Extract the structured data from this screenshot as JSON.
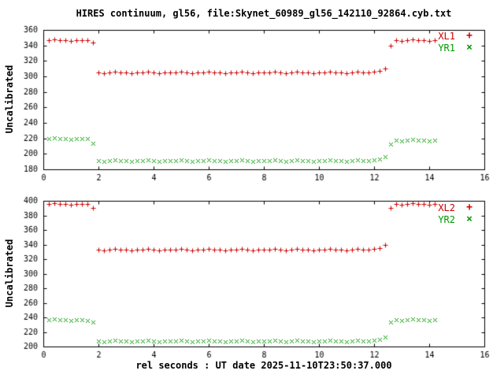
{
  "colors": {
    "background": "#ffffff",
    "axis": "#000000",
    "red": "#cc0000",
    "green": "#009900"
  },
  "chart_data": [
    {
      "type": "scatter",
      "title": "HIRES continuum, gl56, file:Skynet_60989_gl56_142110_92864.cyb.txt",
      "ylabel": "Uncalibrated",
      "xlim": [
        0,
        16
      ],
      "ylim": [
        180,
        360
      ],
      "xticks": [
        0,
        2,
        4,
        6,
        8,
        10,
        12,
        14,
        16
      ],
      "yticks": [
        180,
        200,
        220,
        240,
        260,
        280,
        300,
        320,
        340,
        360
      ],
      "grid": false,
      "legend_position": "top-right",
      "x": [
        0.2,
        0.4,
        0.6,
        0.8,
        1.0,
        1.2,
        1.4,
        1.6,
        1.8,
        2.0,
        2.2,
        2.4,
        2.6,
        2.8,
        3.0,
        3.2,
        3.4,
        3.6,
        3.8,
        4.0,
        4.2,
        4.4,
        4.6,
        4.8,
        5.0,
        5.2,
        5.4,
        5.6,
        5.8,
        6.0,
        6.2,
        6.4,
        6.6,
        6.8,
        7.0,
        7.2,
        7.4,
        7.6,
        7.8,
        8.0,
        8.2,
        8.4,
        8.6,
        8.8,
        9.0,
        9.2,
        9.4,
        9.6,
        9.8,
        10.0,
        10.2,
        10.4,
        10.6,
        10.8,
        11.0,
        11.2,
        11.4,
        11.6,
        11.8,
        12.0,
        12.2,
        12.4,
        12.6,
        12.8,
        13.0,
        13.2,
        13.4,
        13.6,
        13.8,
        14.0,
        14.2
      ],
      "series": [
        {
          "name": "XL1",
          "marker": "plus",
          "color": "#cc0000",
          "values": [
            347,
            348,
            347,
            347,
            346,
            347,
            347,
            347,
            344,
            305,
            304,
            305,
            306,
            305,
            305,
            304,
            305,
            305,
            306,
            305,
            304,
            305,
            305,
            305,
            306,
            305,
            304,
            305,
            305,
            306,
            305,
            305,
            304,
            305,
            305,
            306,
            305,
            304,
            305,
            305,
            305,
            306,
            305,
            304,
            305,
            306,
            305,
            305,
            304,
            305,
            305,
            306,
            305,
            305,
            304,
            305,
            306,
            305,
            305,
            306,
            307,
            310,
            340,
            347,
            346,
            347,
            348,
            347,
            347,
            346,
            347
          ]
        },
        {
          "name": "YR1",
          "marker": "cross",
          "color": "#009900",
          "values": [
            220,
            221,
            220,
            220,
            219,
            220,
            220,
            220,
            214,
            191,
            190,
            191,
            192,
            191,
            191,
            190,
            191,
            191,
            192,
            191,
            190,
            191,
            191,
            191,
            192,
            191,
            190,
            191,
            191,
            192,
            191,
            191,
            190,
            191,
            191,
            192,
            191,
            190,
            191,
            191,
            191,
            192,
            191,
            190,
            191,
            192,
            191,
            191,
            190,
            191,
            191,
            192,
            191,
            191,
            190,
            191,
            192,
            191,
            191,
            192,
            193,
            196,
            213,
            218,
            217,
            218,
            219,
            218,
            218,
            217,
            218
          ]
        }
      ]
    },
    {
      "type": "scatter",
      "xlabel": "rel seconds : UT date 2025-11-10T23:50:37.000",
      "ylabel": "Uncalibrated",
      "xlim": [
        0,
        16
      ],
      "ylim": [
        200,
        400
      ],
      "xticks": [
        0,
        2,
        4,
        6,
        8,
        10,
        12,
        14,
        16
      ],
      "yticks": [
        200,
        220,
        240,
        260,
        280,
        300,
        320,
        340,
        360,
        380,
        400
      ],
      "grid": false,
      "legend_position": "top-right",
      "x": [
        0.2,
        0.4,
        0.6,
        0.8,
        1.0,
        1.2,
        1.4,
        1.6,
        1.8,
        2.0,
        2.2,
        2.4,
        2.6,
        2.8,
        3.0,
        3.2,
        3.4,
        3.6,
        3.8,
        4.0,
        4.2,
        4.4,
        4.6,
        4.8,
        5.0,
        5.2,
        5.4,
        5.6,
        5.8,
        6.0,
        6.2,
        6.4,
        6.6,
        6.8,
        7.0,
        7.2,
        7.4,
        7.6,
        7.8,
        8.0,
        8.2,
        8.4,
        8.6,
        8.8,
        9.0,
        9.2,
        9.4,
        9.6,
        9.8,
        10.0,
        10.2,
        10.4,
        10.6,
        10.8,
        11.0,
        11.2,
        11.4,
        11.6,
        11.8,
        12.0,
        12.2,
        12.4,
        12.6,
        12.8,
        13.0,
        13.2,
        13.4,
        13.6,
        13.8,
        14.0,
        14.2
      ],
      "series": [
        {
          "name": "XL2",
          "marker": "plus",
          "color": "#cc0000",
          "values": [
            396,
            397,
            396,
            396,
            395,
            396,
            396,
            396,
            390,
            333,
            332,
            333,
            334,
            333,
            333,
            332,
            333,
            333,
            334,
            333,
            332,
            333,
            333,
            333,
            334,
            333,
            332,
            333,
            333,
            334,
            333,
            333,
            332,
            333,
            333,
            334,
            333,
            332,
            333,
            333,
            333,
            334,
            333,
            332,
            333,
            334,
            333,
            333,
            332,
            333,
            333,
            334,
            333,
            333,
            332,
            333,
            334,
            333,
            333,
            334,
            335,
            340,
            390,
            396,
            395,
            396,
            397,
            396,
            396,
            395,
            396
          ]
        },
        {
          "name": "YR2",
          "marker": "cross",
          "color": "#009900",
          "values": [
            237,
            238,
            237,
            237,
            236,
            237,
            237,
            236,
            233,
            208,
            207,
            208,
            209,
            208,
            208,
            207,
            208,
            208,
            209,
            208,
            207,
            208,
            208,
            208,
            209,
            208,
            207,
            208,
            208,
            209,
            208,
            208,
            207,
            208,
            208,
            209,
            208,
            207,
            208,
            208,
            208,
            209,
            208,
            207,
            208,
            209,
            208,
            208,
            207,
            208,
            208,
            209,
            208,
            208,
            207,
            208,
            209,
            208,
            208,
            209,
            210,
            213,
            234,
            237,
            236,
            237,
            238,
            237,
            237,
            236,
            237
          ]
        }
      ]
    }
  ]
}
